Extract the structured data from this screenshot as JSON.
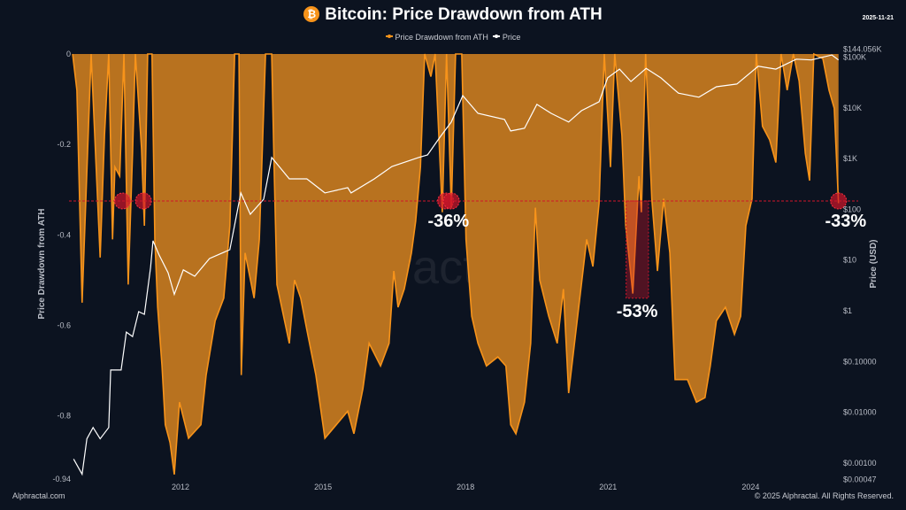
{
  "header": {
    "title": "Bitcoin: Price Drawdown from ATH",
    "logo_icon": "bitcoin-icon",
    "logo_glyph": "₿",
    "date": "2025-11-21"
  },
  "footer": {
    "left": "Alphractal.com",
    "right": "© 2025 Alphractal. All Rights Reserved."
  },
  "watermark": "Alphractal",
  "colors": {
    "background": "#0c1320",
    "drawdown_line": "#f7931a",
    "drawdown_fill": "#b8721f",
    "price": "#ffffff",
    "marker": "#d0152a"
  },
  "chart_data": {
    "type": "area",
    "title": "Bitcoin: Price Drawdown from ATH",
    "legend": [
      "Price Drawdown from ATH",
      "Price"
    ],
    "legend_position": "top",
    "grid": false,
    "x_ticks": [
      "2012",
      "2015",
      "2018",
      "2021",
      "2024"
    ],
    "x_tick_values": [
      2012,
      2015,
      2018,
      2021,
      2024
    ],
    "xlim": [
      2009.73,
      2025.85
    ],
    "y_left": {
      "label": "Price Drawdown from ATH",
      "ticks": [
        "0",
        "-0.2",
        "-0.4",
        "-0.6",
        "-0.8",
        "-0.94"
      ],
      "tick_values": [
        0,
        -0.2,
        -0.4,
        -0.6,
        -0.8,
        -0.94
      ],
      "range": [
        -0.94,
        0
      ]
    },
    "y_right": {
      "label": "Price (USD)",
      "scale": "log",
      "ticks": [
        "$144.056K",
        "$100K",
        "$10K",
        "$1K",
        "$100",
        "$10",
        "$1",
        "$0.10000",
        "$0.01000",
        "$0.00100",
        "$0.00047"
      ],
      "tick_values": [
        144056,
        100000,
        10000,
        1000,
        100,
        10,
        1,
        0.1,
        0.01,
        0.001,
        0.00047
      ],
      "range": [
        0.00047,
        144056
      ]
    },
    "series": [
      {
        "name": "Price Drawdown from ATH",
        "axis": "left",
        "x": [
          2009.73,
          2009.82,
          2009.93,
          2010.12,
          2010.31,
          2010.4,
          2010.49,
          2010.57,
          2010.62,
          2010.72,
          2010.81,
          2010.9,
          2010.99,
          2011.05,
          2011.18,
          2011.24,
          2011.31,
          2011.4,
          2011.46,
          2011.52,
          2011.61,
          2011.68,
          2011.78,
          2011.87,
          2011.98,
          2012.17,
          2012.43,
          2012.54,
          2012.73,
          2012.91,
          2013.04,
          2013.14,
          2013.23,
          2013.28,
          2013.36,
          2013.55,
          2013.66,
          2013.79,
          2013.92,
          2013.97,
          2014.03,
          2014.29,
          2014.4,
          2014.53,
          2014.66,
          2014.85,
          2015.04,
          2015.28,
          2015.52,
          2015.65,
          2015.84,
          2015.97,
          2016.21,
          2016.39,
          2016.49,
          2016.58,
          2016.71,
          2016.86,
          2016.95,
          2017.05,
          2017.14,
          2017.27,
          2017.36,
          2017.51,
          2017.6,
          2017.7,
          2017.79,
          2017.92,
          2018.01,
          2018.13,
          2018.26,
          2018.44,
          2018.68,
          2018.85,
          2018.95,
          2019.06,
          2019.24,
          2019.37,
          2019.47,
          2019.56,
          2019.75,
          2019.93,
          2020.06,
          2020.17,
          2020.36,
          2020.55,
          2020.68,
          2020.81,
          2020.92,
          2021.05,
          2021.14,
          2021.29,
          2021.37,
          2021.52,
          2021.65,
          2021.7,
          2021.79,
          2021.92,
          2022.04,
          2022.17,
          2022.3,
          2022.41,
          2022.67,
          2022.86,
          2023.04,
          2023.15,
          2023.28,
          2023.47,
          2023.66,
          2023.79,
          2023.9,
          2024.03,
          2024.12,
          2024.25,
          2024.4,
          2024.53,
          2024.64,
          2024.77,
          2024.9,
          2025.02,
          2025.15,
          2025.24,
          2025.33,
          2025.52,
          2025.65,
          2025.76,
          2025.85
        ],
        "values": [
          0,
          -0.08,
          -0.55,
          0,
          -0.45,
          -0.18,
          0,
          -0.41,
          -0.25,
          -0.27,
          0,
          -0.51,
          -0.22,
          0,
          -0.21,
          -0.38,
          0,
          0,
          -0.41,
          -0.56,
          -0.69,
          -0.82,
          -0.86,
          -0.93,
          -0.77,
          -0.85,
          -0.82,
          -0.71,
          -0.59,
          -0.54,
          -0.38,
          0,
          0,
          -0.71,
          -0.44,
          -0.54,
          -0.41,
          0,
          0,
          -0.25,
          -0.51,
          -0.64,
          -0.5,
          -0.54,
          -0.61,
          -0.71,
          -0.85,
          -0.82,
          -0.79,
          -0.84,
          -0.74,
          -0.64,
          -0.69,
          -0.64,
          -0.48,
          -0.56,
          -0.52,
          -0.44,
          -0.37,
          -0.25,
          0,
          -0.05,
          0,
          -0.35,
          0,
          -0.34,
          0,
          0,
          -0.41,
          -0.58,
          -0.64,
          -0.69,
          -0.67,
          -0.69,
          -0.82,
          -0.84,
          -0.77,
          -0.64,
          -0.34,
          -0.5,
          -0.58,
          -0.64,
          -0.52,
          -0.75,
          -0.58,
          -0.41,
          -0.47,
          -0.33,
          0,
          -0.25,
          0,
          -0.18,
          -0.38,
          -0.53,
          -0.27,
          -0.35,
          0,
          -0.32,
          -0.48,
          -0.32,
          -0.44,
          -0.72,
          -0.72,
          -0.77,
          -0.76,
          -0.69,
          -0.59,
          -0.56,
          -0.62,
          -0.58,
          -0.38,
          -0.32,
          0,
          -0.16,
          -0.19,
          -0.24,
          0,
          -0.08,
          0,
          -0.06,
          -0.22,
          -0.28,
          0,
          -0.01,
          -0.08,
          -0.12,
          -0.33
        ]
      },
      {
        "name": "Price",
        "axis": "right",
        "x": [
          2009.75,
          2009.93,
          2010.03,
          2010.16,
          2010.31,
          2010.49,
          2010.53,
          2010.75,
          2010.86,
          2010.99,
          2011.12,
          2011.24,
          2011.37,
          2011.42,
          2011.55,
          2011.74,
          2011.87,
          2012.06,
          2012.3,
          2012.61,
          2013.04,
          2013.27,
          2013.47,
          2013.75,
          2013.92,
          2014.29,
          2014.66,
          2015.04,
          2015.52,
          2015.59,
          2016.08,
          2016.45,
          2017.01,
          2017.2,
          2017.46,
          2017.7,
          2017.94,
          2018.26,
          2018.82,
          2018.95,
          2019.24,
          2019.5,
          2019.8,
          2020.17,
          2020.44,
          2020.81,
          2020.99,
          2021.24,
          2021.48,
          2021.8,
          2022.11,
          2022.48,
          2022.91,
          2023.28,
          2023.71,
          2024.16,
          2024.53,
          2024.96,
          2025.28,
          2025.71,
          2025.85
        ],
        "values": [
          0.0012,
          0.0006,
          0.003,
          0.005,
          0.003,
          0.005,
          0.068,
          0.068,
          0.38,
          0.31,
          0.96,
          0.85,
          7.2,
          24,
          12.6,
          5.6,
          2.1,
          6.4,
          4.8,
          10.7,
          16,
          210,
          80,
          158,
          1050,
          398,
          398,
          210,
          268,
          210,
          398,
          700,
          1050,
          1180,
          2630,
          5250,
          17400,
          7800,
          5900,
          3500,
          3950,
          11700,
          7800,
          5250,
          8800,
          13200,
          39000,
          58000,
          33000,
          60000,
          39000,
          19500,
          16200,
          26000,
          29500,
          66000,
          58000,
          91000,
          88000,
          110000,
          88000
        ]
      }
    ],
    "threshold": {
      "value": -0.325,
      "style": "dashed",
      "color": "#d0152a"
    },
    "markers": [
      {
        "x": 2010.78,
        "y": -0.325
      },
      {
        "x": 2011.22,
        "y": -0.325
      },
      {
        "x": 2017.58,
        "y": -0.325
      },
      {
        "x": 2017.7,
        "y": -0.325
      },
      {
        "x": 2025.85,
        "y": -0.325
      }
    ],
    "highlight_box": {
      "x": [
        2021.38,
        2021.85
      ],
      "y": [
        -0.325,
        -0.54
      ]
    },
    "annotations": [
      {
        "text": "-36%",
        "x": 2017.64,
        "y": -0.37
      },
      {
        "text": "-53%",
        "x": 2021.61,
        "y": -0.57
      },
      {
        "text": "-33%",
        "x": 2026.0,
        "y": -0.37
      }
    ]
  }
}
